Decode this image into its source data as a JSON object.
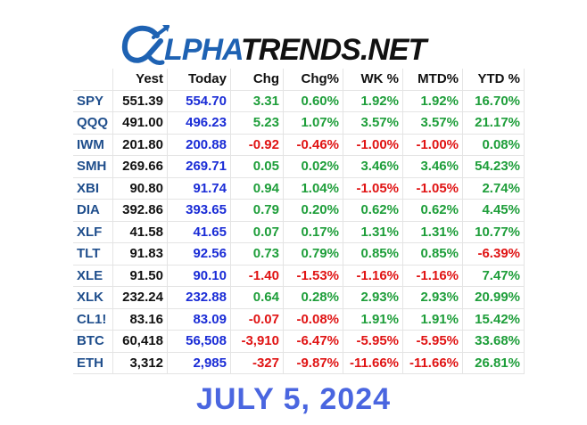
{
  "logo": {
    "alpha_text": "LPHA",
    "trends_text": "TRENDS.NET"
  },
  "headers": [
    "",
    "Yest",
    "Today",
    "Chg",
    "Chg%",
    "WK %",
    "MTD%",
    "YTD %"
  ],
  "colors": {
    "positive": "#1e9e3a",
    "negative": "#e01414",
    "today": "#1a2cd6",
    "symbol": "#1f4e8c",
    "date": "#4a66e0"
  },
  "rows": [
    {
      "sym": "SPY",
      "yest": "551.39",
      "today": "554.70",
      "chg": "3.31",
      "chgp": "0.60%",
      "wk": "1.92%",
      "mtd": "1.92%",
      "ytd": "16.70%"
    },
    {
      "sym": "QQQ",
      "yest": "491.00",
      "today": "496.23",
      "chg": "5.23",
      "chgp": "1.07%",
      "wk": "3.57%",
      "mtd": "3.57%",
      "ytd": "21.17%"
    },
    {
      "sym": "IWM",
      "yest": "201.80",
      "today": "200.88",
      "chg": "-0.92",
      "chgp": "-0.46%",
      "wk": "-1.00%",
      "mtd": "-1.00%",
      "ytd": "0.08%"
    },
    {
      "sym": "SMH",
      "yest": "269.66",
      "today": "269.71",
      "chg": "0.05",
      "chgp": "0.02%",
      "wk": "3.46%",
      "mtd": "3.46%",
      "ytd": "54.23%"
    },
    {
      "sym": "XBI",
      "yest": "90.80",
      "today": "91.74",
      "chg": "0.94",
      "chgp": "1.04%",
      "wk": "-1.05%",
      "mtd": "-1.05%",
      "ytd": "2.74%"
    },
    {
      "sym": "DIA",
      "yest": "392.86",
      "today": "393.65",
      "chg": "0.79",
      "chgp": "0.20%",
      "wk": "0.62%",
      "mtd": "0.62%",
      "ytd": "4.45%"
    },
    {
      "sym": "XLF",
      "yest": "41.58",
      "today": "41.65",
      "chg": "0.07",
      "chgp": "0.17%",
      "wk": "1.31%",
      "mtd": "1.31%",
      "ytd": "10.77%"
    },
    {
      "sym": "TLT",
      "yest": "91.83",
      "today": "92.56",
      "chg": "0.73",
      "chgp": "0.79%",
      "wk": "0.85%",
      "mtd": "0.85%",
      "ytd": "-6.39%"
    },
    {
      "sym": "XLE",
      "yest": "91.50",
      "today": "90.10",
      "chg": "-1.40",
      "chgp": "-1.53%",
      "wk": "-1.16%",
      "mtd": "-1.16%",
      "ytd": "7.47%"
    },
    {
      "sym": "XLK",
      "yest": "232.24",
      "today": "232.88",
      "chg": "0.64",
      "chgp": "0.28%",
      "wk": "2.93%",
      "mtd": "2.93%",
      "ytd": "20.99%"
    },
    {
      "sym": "CL1!",
      "yest": "83.16",
      "today": "83.09",
      "chg": "-0.07",
      "chgp": "-0.08%",
      "wk": "1.91%",
      "mtd": "1.91%",
      "ytd": "15.42%"
    },
    {
      "sym": "BTC",
      "yest": "60,418",
      "today": "56,508",
      "chg": "-3,910",
      "chgp": "-6.47%",
      "wk": "-5.95%",
      "mtd": "-5.95%",
      "ytd": "33.68%"
    },
    {
      "sym": "ETH",
      "yest": "3,312",
      "today": "2,985",
      "chg": "-327",
      "chgp": "-9.87%",
      "wk": "-11.66%",
      "mtd": "-11.66%",
      "ytd": "26.81%"
    }
  ],
  "date": "JULY 5, 2024"
}
